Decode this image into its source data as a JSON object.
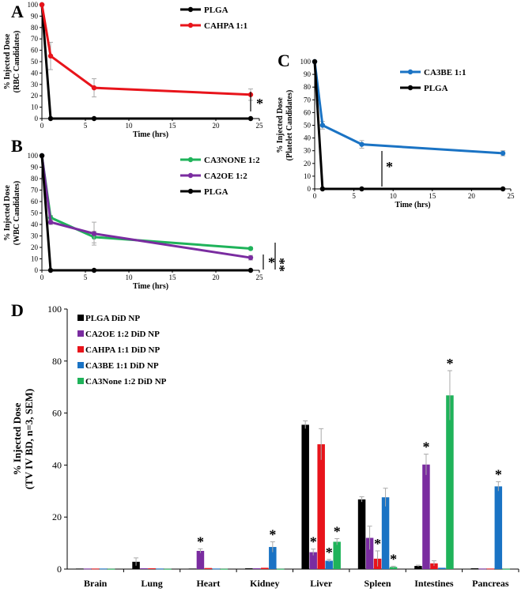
{
  "chart_data": [
    {
      "id": "A",
      "type": "line",
      "panel_label": "A",
      "xlabel": "Time (hrs)",
      "ylabel": [
        "% Injected Dose",
        "(RBC Candidates)"
      ],
      "xlim": [
        0,
        25
      ],
      "ylim": [
        0,
        100
      ],
      "xticks": [
        0,
        5,
        10,
        15,
        20,
        25
      ],
      "yticks": [
        0,
        10,
        20,
        30,
        40,
        50,
        60,
        70,
        80,
        90,
        100
      ],
      "significance": [
        "*"
      ],
      "series": [
        {
          "name": "PLGA",
          "color": "#000000",
          "x": [
            0,
            1,
            6,
            24
          ],
          "y": [
            100,
            0,
            0,
            0
          ],
          "err": [
            0,
            0,
            0,
            0
          ]
        },
        {
          "name": "CAHPA 1:1",
          "color": "#e8141b",
          "x": [
            0,
            1,
            6,
            24
          ],
          "y": [
            100,
            55,
            27,
            21
          ],
          "err": [
            0,
            12,
            8,
            5
          ]
        }
      ]
    },
    {
      "id": "B",
      "type": "line",
      "panel_label": "B",
      "xlabel": "Time (hrs)",
      "ylabel": [
        "% Injected Dose",
        "(WBC Candidates)"
      ],
      "xlim": [
        0,
        25
      ],
      "ylim": [
        0,
        100
      ],
      "xticks": [
        0,
        5,
        10,
        15,
        20,
        25
      ],
      "yticks": [
        0,
        10,
        20,
        30,
        40,
        50,
        60,
        70,
        80,
        90,
        100
      ],
      "significance": [
        "*",
        "**"
      ],
      "series": [
        {
          "name": "CA3NONE 1:2",
          "color": "#1fb35a",
          "x": [
            0,
            1,
            6,
            24
          ],
          "y": [
            100,
            46,
            29,
            19
          ],
          "err": [
            0,
            2,
            5,
            1
          ]
        },
        {
          "name": "CA2OE 1:2",
          "color": "#7a2ca0",
          "x": [
            0,
            1,
            6,
            24
          ],
          "y": [
            100,
            42,
            32,
            11
          ],
          "err": [
            0,
            2,
            10,
            2
          ]
        },
        {
          "name": "PLGA",
          "color": "#000000",
          "x": [
            0,
            1,
            6,
            24
          ],
          "y": [
            100,
            0,
            0,
            0
          ],
          "err": [
            0,
            0,
            0,
            0
          ]
        }
      ]
    },
    {
      "id": "C",
      "type": "line",
      "panel_label": "C",
      "xlabel": "Time (hrs)",
      "ylabel": [
        "% Injected Dose",
        "(Platelet Candidates)"
      ],
      "xlim": [
        0,
        25
      ],
      "ylim": [
        0,
        100
      ],
      "xticks": [
        0,
        5,
        10,
        15,
        20,
        25
      ],
      "yticks": [
        0,
        10,
        20,
        30,
        40,
        50,
        60,
        70,
        80,
        90,
        100
      ],
      "significance": [
        "*"
      ],
      "series": [
        {
          "name": "CA3BE 1:1",
          "color": "#1a73c4",
          "x": [
            0,
            1,
            6,
            24
          ],
          "y": [
            100,
            50,
            35,
            28
          ],
          "err": [
            0,
            3,
            3,
            2
          ]
        },
        {
          "name": "PLGA",
          "color": "#000000",
          "x": [
            0,
            1,
            6,
            24
          ],
          "y": [
            100,
            0,
            0,
            0
          ],
          "err": [
            0,
            0,
            0,
            0
          ]
        }
      ]
    },
    {
      "id": "D",
      "type": "bar",
      "panel_label": "D",
      "ylabel": [
        "% Injected Dose",
        "(TV IV BD, n=3, SEM)"
      ],
      "ylim": [
        0,
        100
      ],
      "yticks": [
        0,
        20,
        40,
        60,
        80,
        100
      ],
      "categories": [
        "Brain",
        "Lung",
        "Heart",
        "Kidney",
        "Liver",
        "Spleen",
        "Intestines",
        "Pancreas"
      ],
      "series": [
        {
          "name": "PLGA DiD NP",
          "color": "#000000",
          "values": [
            0.2,
            2.8,
            0.2,
            0.3,
            55.5,
            26.8,
            1.2,
            0.3
          ],
          "err": [
            0.1,
            1.5,
            0.1,
            0.1,
            1.5,
            1.0,
            0.3,
            0.1
          ]
        },
        {
          "name": "CA2OE 1:2 DiD NP",
          "color": "#7a2ca0",
          "values": [
            0.2,
            0.3,
            7.0,
            0.3,
            6.5,
            12.0,
            40.2,
            0.2
          ],
          "err": [
            0.1,
            0.1,
            0.8,
            0.1,
            1.2,
            4.5,
            4.0,
            0.1
          ]
        },
        {
          "name": "CAHPA 1:1 DiD NP",
          "color": "#e8141b",
          "values": [
            0.2,
            0.3,
            0.4,
            0.5,
            48.0,
            4.0,
            2.2,
            0.2
          ],
          "err": [
            0.1,
            0.1,
            0.1,
            0.1,
            6.0,
            3.0,
            1.0,
            0.1
          ]
        },
        {
          "name": "CA3BE 1:1 DiD NP",
          "color": "#1a73c4",
          "values": [
            0.2,
            0.2,
            0.2,
            8.5,
            3.2,
            27.6,
            0.5,
            31.8
          ],
          "err": [
            0.1,
            0.1,
            0.1,
            2.0,
            0.5,
            3.5,
            0.2,
            1.8
          ]
        },
        {
          "name": "CA3None 1:2 DiD NP",
          "color": "#1fb35a",
          "values": [
            0.1,
            0.1,
            0.1,
            0.1,
            10.5,
            0.8,
            66.8,
            0.1
          ],
          "err": [
            0.05,
            0.05,
            0.05,
            0.05,
            1.2,
            0.3,
            9.5,
            0.05
          ]
        }
      ],
      "significance": [
        {
          "category": "Heart",
          "series": "CA2OE 1:2 DiD NP",
          "label": "*"
        },
        {
          "category": "Kidney",
          "series": "CA3BE 1:1 DiD NP",
          "label": "*"
        },
        {
          "category": "Liver",
          "series": "CA2OE 1:2 DiD NP",
          "label": "*"
        },
        {
          "category": "Liver",
          "series": "CA3BE 1:1 DiD NP",
          "label": "*"
        },
        {
          "category": "Liver",
          "series": "CA3None 1:2 DiD NP",
          "label": "*"
        },
        {
          "category": "Spleen",
          "series": "CAHPA 1:1 DiD NP",
          "label": "*"
        },
        {
          "category": "Spleen",
          "series": "CA3None 1:2 DiD NP",
          "label": "*"
        },
        {
          "category": "Intestines",
          "series": "CA2OE 1:2 DiD NP",
          "label": "*"
        },
        {
          "category": "Intestines",
          "series": "CA3None 1:2 DiD NP",
          "label": "*"
        },
        {
          "category": "Pancreas",
          "series": "CA3BE 1:1 DiD NP",
          "label": "*"
        }
      ]
    }
  ]
}
